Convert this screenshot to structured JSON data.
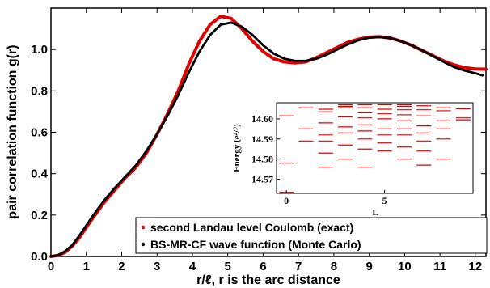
{
  "chart_data": [
    {
      "type": "line",
      "xlabel": "r/ℓ, r is the arc distance",
      "ylabel": "pair correlation function g(r)",
      "xlim": [
        0,
        12.3
      ],
      "ylim": [
        0,
        1.2
      ],
      "xticks": [
        0,
        1,
        2,
        3,
        4,
        5,
        6,
        7,
        8,
        9,
        10,
        11,
        12
      ],
      "yticks": [
        0,
        0.2,
        0.4,
        0.6,
        0.8,
        1.0
      ],
      "ytick_labels": [
        "0.0",
        "0.2",
        "0.4",
        "0.6",
        "0.8",
        "1.0"
      ],
      "legend_position": "bottom-right",
      "series": [
        {
          "name": "second Landau level Coulomb (exact)",
          "color": "#e00000",
          "x": [
            0,
            0.2,
            0.4,
            0.6,
            0.8,
            1.0,
            1.2,
            1.5,
            1.8,
            2.1,
            2.4,
            2.7,
            3.0,
            3.3,
            3.6,
            3.9,
            4.2,
            4.5,
            4.8,
            5.1,
            5.4,
            5.7,
            6.0,
            6.3,
            6.6,
            6.9,
            7.2,
            7.5,
            7.8,
            8.1,
            8.4,
            8.7,
            9.0,
            9.3,
            9.6,
            9.9,
            10.2,
            10.5,
            10.8,
            11.1,
            11.4,
            11.7,
            12.0,
            12.3
          ],
          "y": [
            0.0,
            0.005,
            0.02,
            0.05,
            0.09,
            0.14,
            0.19,
            0.26,
            0.32,
            0.38,
            0.43,
            0.5,
            0.59,
            0.69,
            0.8,
            0.93,
            1.04,
            1.12,
            1.16,
            1.15,
            1.1,
            1.04,
            0.99,
            0.955,
            0.94,
            0.935,
            0.94,
            0.96,
            0.985,
            1.01,
            1.035,
            1.05,
            1.06,
            1.062,
            1.055,
            1.04,
            1.02,
            0.995,
            0.97,
            0.945,
            0.925,
            0.912,
            0.906,
            0.905
          ]
        },
        {
          "name": "BS-MR-CF wave function (Monte Carlo)",
          "color": "#000000",
          "x": [
            0,
            0.2,
            0.4,
            0.6,
            0.8,
            1.0,
            1.2,
            1.5,
            1.8,
            2.1,
            2.4,
            2.7,
            3.0,
            3.3,
            3.6,
            3.9,
            4.2,
            4.5,
            4.8,
            5.1,
            5.4,
            5.7,
            6.0,
            6.3,
            6.6,
            6.9,
            7.2,
            7.5,
            7.8,
            8.1,
            8.4,
            8.7,
            9.0,
            9.3,
            9.6,
            9.9,
            10.2,
            10.5,
            10.8,
            11.1,
            11.4,
            11.7,
            12.0,
            12.2
          ],
          "y": [
            0.0,
            0.006,
            0.025,
            0.055,
            0.1,
            0.15,
            0.2,
            0.27,
            0.33,
            0.385,
            0.44,
            0.51,
            0.59,
            0.68,
            0.78,
            0.89,
            0.99,
            1.07,
            1.12,
            1.13,
            1.11,
            1.07,
            1.02,
            0.98,
            0.955,
            0.945,
            0.945,
            0.955,
            0.975,
            1.0,
            1.025,
            1.045,
            1.057,
            1.06,
            1.055,
            1.04,
            1.02,
            0.995,
            0.968,
            0.94,
            0.915,
            0.898,
            0.885,
            0.875
          ]
        }
      ]
    },
    {
      "type": "scatter",
      "marker": "horizontal-dash",
      "xlabel": "L",
      "ylabel": "Energy (e²/ℓ)",
      "xlim": [
        -0.5,
        9.5
      ],
      "ylim": [
        14.563,
        14.608
      ],
      "xticks": [
        0,
        5
      ],
      "yticks": [
        14.57,
        14.58,
        14.59,
        14.6
      ],
      "ytick_labels": [
        "14.57",
        "14.58",
        "14.59",
        "14.60"
      ],
      "color": "#e00000",
      "levels": [
        {
          "L": 0,
          "E": [
            14.5635,
            14.578,
            14.6015
          ]
        },
        {
          "L": 1,
          "E": [
            14.589,
            14.595,
            14.6055
          ]
        },
        {
          "L": 2,
          "E": [
            14.576,
            14.583,
            14.589,
            14.592,
            14.598,
            14.6035,
            14.6048
          ]
        },
        {
          "L": 3,
          "E": [
            14.58,
            14.587,
            14.593,
            14.596,
            14.601,
            14.6055,
            14.6062,
            14.607
          ]
        },
        {
          "L": 4,
          "E": [
            14.576,
            14.585,
            14.59,
            14.594,
            14.597,
            14.6005,
            14.603,
            14.6055,
            14.607
          ]
        },
        {
          "L": 5,
          "E": [
            14.584,
            14.588,
            14.592,
            14.595,
            14.6,
            14.6025,
            14.6048,
            14.607
          ]
        },
        {
          "L": 6,
          "E": [
            14.58,
            14.586,
            14.592,
            14.595,
            14.599,
            14.602,
            14.6045,
            14.6062,
            14.607
          ]
        },
        {
          "L": 7,
          "E": [
            14.577,
            14.584,
            14.589,
            14.593,
            14.5965,
            14.6015,
            14.6045,
            14.6065
          ]
        },
        {
          "L": 8,
          "E": [
            14.58,
            14.59,
            14.595,
            14.599,
            14.604,
            14.6055
          ]
        },
        {
          "L": 9,
          "E": [
            14.5995,
            14.6005,
            14.605
          ]
        }
      ]
    }
  ]
}
